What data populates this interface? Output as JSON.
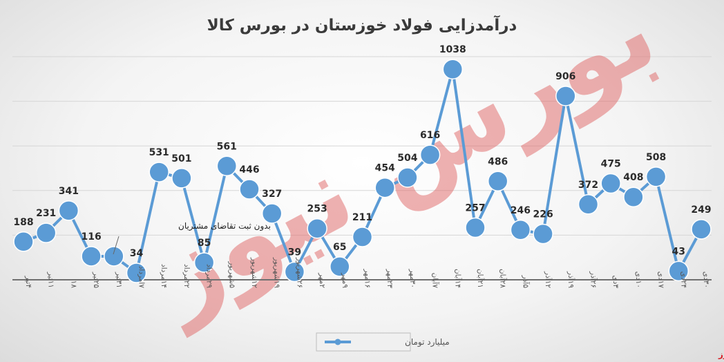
{
  "chart_data": {
    "type": "line",
    "title": "درآمدزایی فولاد خوزستان در بورس کالا",
    "xlabel": "",
    "ylabel": "",
    "ylim": [
      0,
      1100
    ],
    "grid": true,
    "legend": "bottom",
    "categories": [
      "۴تیر",
      "۱۱تیر",
      "۱۸",
      "۲۵تیر",
      "۳۱تیر",
      "۷امرداد",
      "۱۴مرداد",
      "۲۲مرداد",
      "۲۹مرداد",
      "۵شهریور",
      "۱۲شهریور",
      "۱۹شهریور",
      "۲۶شهریور",
      "۲مهر",
      "۹مهر",
      "۱۶مهر",
      "۲۳مهر",
      "۳۰مهر",
      "۷آبان",
      "۱۴آبان",
      "۲۱آبان",
      "۲۸آبان",
      "۵آذر",
      "۱۲آذر",
      "۱۹آذر",
      "۲۶آذر",
      "۳دی",
      "۱۰دی",
      "۱۷دی",
      "۲۴دی",
      "۳۰دی"
    ],
    "series": [
      {
        "name": "میلیارد تومان",
        "color": "#5b9bd5",
        "values": [
          188,
          231,
          341,
          116,
          116,
          34,
          531,
          501,
          85,
          561,
          446,
          327,
          39,
          253,
          65,
          211,
          454,
          504,
          616,
          1038,
          257,
          486,
          246,
          226,
          906,
          372,
          475,
          408,
          508,
          43,
          249
        ]
      }
    ],
    "data_labels": [
      "188",
      "231",
      "341",
      "116",
      "",
      "34",
      "531",
      "501",
      "85",
      "561",
      "446",
      "327",
      "39",
      "253",
      "65",
      "211",
      "454",
      "504",
      "616",
      "1038",
      "257",
      "486",
      "246",
      "226",
      "906",
      "372",
      "475",
      "408",
      "508",
      "43",
      "249"
    ],
    "annotation": "بدون ثبت تقاضای مشتریان"
  },
  "watermark": {
    "text": "بورس نیوز",
    "color": "#e06666"
  },
  "brand": {
    "text": "بورس نیوز",
    "color": "#d81f26"
  }
}
